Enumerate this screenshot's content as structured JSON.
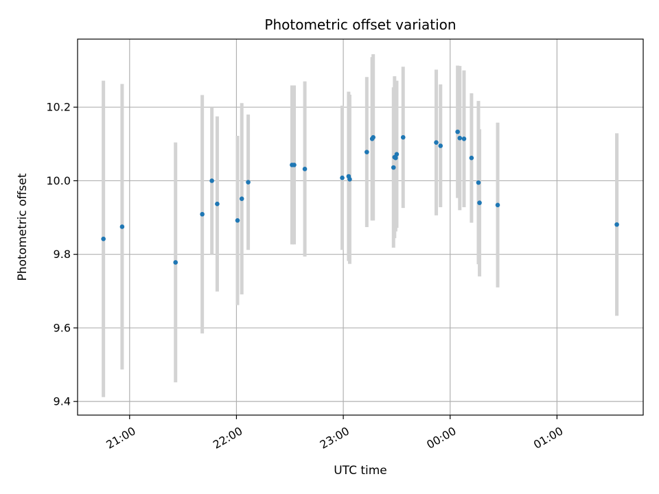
{
  "chart_data": {
    "type": "scatter",
    "title": "Photometric offset variation",
    "xlabel": "UTC time",
    "ylabel": "Photometric offset",
    "x_unit": "hours since 00:00 UTC (negative = previous day)",
    "xlim": [
      -3.487,
      1.807
    ],
    "ylim": [
      9.363,
      10.385
    ],
    "x_ticks": [
      {
        "value": -3.0,
        "label": "21:00"
      },
      {
        "value": -2.0,
        "label": "22:00"
      },
      {
        "value": -1.0,
        "label": "23:00"
      },
      {
        "value": 0.0,
        "label": "00:00"
      },
      {
        "value": 1.0,
        "label": "01:00"
      }
    ],
    "y_ticks": [
      {
        "value": 9.4,
        "label": "9.4"
      },
      {
        "value": 9.6,
        "label": "9.6"
      },
      {
        "value": 9.8,
        "label": "9.8"
      },
      {
        "value": 10.0,
        "label": "10.0"
      },
      {
        "value": 10.2,
        "label": "10.2"
      }
    ],
    "grid": true,
    "colors": {
      "point": "#1f77b4",
      "errorbar": "#d3d3d3",
      "grid": "#b0b0b0"
    },
    "points": [
      {
        "x": -3.245,
        "y": 9.842,
        "err": 0.43
      },
      {
        "x": -3.07,
        "y": 9.875,
        "err": 0.388
      },
      {
        "x": -2.57,
        "y": 9.778,
        "err": 0.326
      },
      {
        "x": -2.32,
        "y": 9.909,
        "err": 0.324
      },
      {
        "x": -2.23,
        "y": 10.0,
        "err": 0.2
      },
      {
        "x": -2.18,
        "y": 9.937,
        "err": 0.238
      },
      {
        "x": -1.99,
        "y": 9.892,
        "err": 0.23
      },
      {
        "x": -1.95,
        "y": 9.951,
        "err": 0.26
      },
      {
        "x": -1.89,
        "y": 9.996,
        "err": 0.184
      },
      {
        "x": -1.48,
        "y": 10.043,
        "err": 0.216
      },
      {
        "x": -1.46,
        "y": 10.043,
        "err": 0.216
      },
      {
        "x": -1.36,
        "y": 10.032,
        "err": 0.238
      },
      {
        "x": -1.01,
        "y": 10.008,
        "err": 0.196
      },
      {
        "x": -0.95,
        "y": 10.012,
        "err": 0.23
      },
      {
        "x": -0.94,
        "y": 10.004,
        "err": 0.23
      },
      {
        "x": -0.78,
        "y": 10.078,
        "err": 0.204
      },
      {
        "x": -0.73,
        "y": 10.114,
        "err": 0.222
      },
      {
        "x": -0.72,
        "y": 10.118,
        "err": 0.226
      },
      {
        "x": -0.53,
        "y": 10.036,
        "err": 0.218
      },
      {
        "x": -0.52,
        "y": 10.064,
        "err": 0.22
      },
      {
        "x": -0.51,
        "y": 10.062,
        "err": 0.2
      },
      {
        "x": -0.5,
        "y": 10.072,
        "err": 0.2
      },
      {
        "x": -0.44,
        "y": 10.118,
        "err": 0.192
      },
      {
        "x": -0.13,
        "y": 10.104,
        "err": 0.198
      },
      {
        "x": -0.09,
        "y": 10.095,
        "err": 0.167
      },
      {
        "x": 0.07,
        "y": 10.133,
        "err": 0.18
      },
      {
        "x": 0.09,
        "y": 10.116,
        "err": 0.196
      },
      {
        "x": 0.13,
        "y": 10.114,
        "err": 0.186
      },
      {
        "x": 0.2,
        "y": 10.062,
        "err": 0.176
      },
      {
        "x": 0.265,
        "y": 9.995,
        "err": 0.222
      },
      {
        "x": 0.275,
        "y": 9.94,
        "err": 0.2
      },
      {
        "x": 0.445,
        "y": 9.934,
        "err": 0.224
      },
      {
        "x": 1.56,
        "y": 9.881,
        "err": 0.248
      }
    ]
  }
}
